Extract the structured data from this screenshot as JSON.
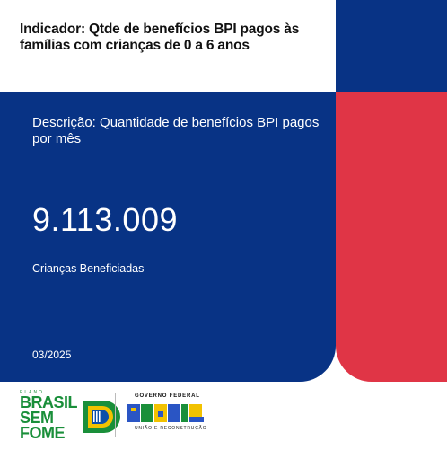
{
  "card": {
    "title": "Indicador: Qtde de benefícios BPI pagos às famílias com crianças de 0 a 6 anos",
    "description": "Descrição: Quantidade de benefícios BPI pagos por mês",
    "value": "9.113.009",
    "value_label": "Crianças Beneficiadas",
    "date": "03/2025"
  },
  "logos": {
    "brasil_sem_fome": {
      "small_text": "PLANO",
      "line1": "BRASIL",
      "line2": "SEM",
      "line3": "FOME"
    },
    "governo_federal": {
      "top_text": "GOVERNO FEDERAL",
      "wordmark": "BRASIL",
      "bottom_text": "UNIÃO E RECONSTRUÇÃO"
    }
  },
  "colors": {
    "blue": "#083385",
    "red": "#e03546",
    "green": "#1a8f3a"
  }
}
